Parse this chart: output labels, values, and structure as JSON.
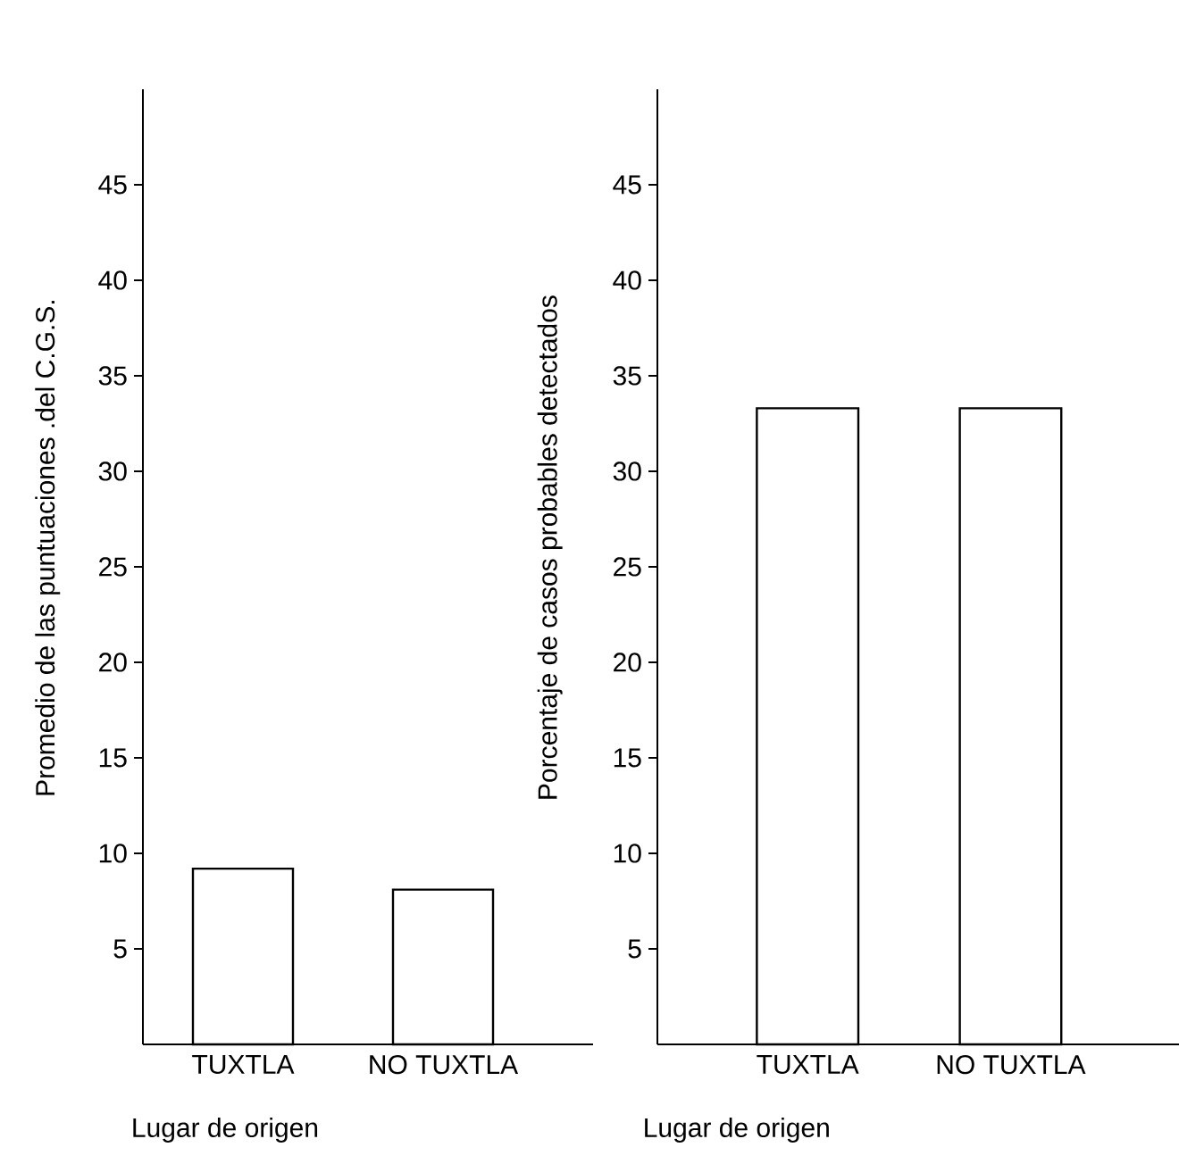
{
  "chart_data": [
    {
      "type": "bar",
      "ylabel": "Promedio de las puntuaciones .del C.G.S.",
      "xlabel": "Lugar de origen",
      "categories": [
        "TUXTLA",
        "NO TUXTLA"
      ],
      "values": [
        9.2,
        8.1
      ],
      "color": "#000000",
      "ylim": [
        0,
        50
      ],
      "yticks": [
        5,
        10,
        15,
        20,
        25,
        30,
        35,
        40,
        45
      ],
      "grid": false
    },
    {
      "type": "bar",
      "ylabel": "Porcentaje de casos probables detectados",
      "xlabel": "Lugar de origen",
      "categories": [
        "TUXTLA",
        "NO TUXTLA"
      ],
      "values": [
        33.3,
        33.3
      ],
      "color": "#000000",
      "ylim": [
        0,
        50
      ],
      "yticks": [
        5,
        10,
        15,
        20,
        25,
        30,
        35,
        40,
        45
      ],
      "grid": false
    }
  ]
}
